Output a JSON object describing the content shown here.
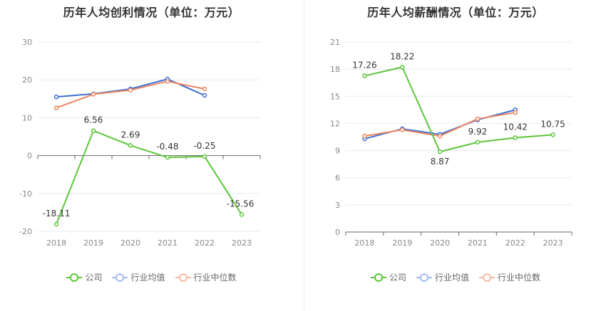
{
  "legend": {
    "company": "公司",
    "industry_avg": "行业均值",
    "industry_median": "行业中位数"
  },
  "colors": {
    "company": "#5cc639",
    "industry_avg": "#3b6fd6",
    "industry_median": "#ef855d"
  },
  "chart_data": [
    {
      "type": "line",
      "title": "历年人均创利情况（单位：万元）",
      "categories": [
        "2018",
        "2019",
        "2020",
        "2021",
        "2022",
        "2023"
      ],
      "yticks": [
        30,
        20,
        10,
        0,
        -10,
        -20
      ],
      "ylim": [
        -20,
        30
      ],
      "series": [
        {
          "name": "公司",
          "key": "company",
          "values": [
            -18.11,
            6.56,
            2.69,
            -0.48,
            -0.25,
            -15.56
          ],
          "labels": [
            "-18.11",
            "6.56",
            "2.69",
            "-0.48",
            "-0.25",
            "-15.56"
          ]
        },
        {
          "name": "行业均值",
          "key": "industry_avg",
          "values": [
            15.5,
            16.3,
            17.6,
            20.2,
            15.9,
            null
          ]
        },
        {
          "name": "行业中位数",
          "key": "industry_median",
          "values": [
            12.6,
            16.2,
            17.3,
            19.6,
            17.6,
            null
          ]
        }
      ]
    },
    {
      "type": "line",
      "title": "历年人均薪酬情况（单位：万元）",
      "categories": [
        "2018",
        "2019",
        "2020",
        "2021",
        "2022",
        "2023"
      ],
      "yticks": [
        21,
        18,
        15,
        12,
        9,
        6,
        3,
        0
      ],
      "ylim": [
        0,
        21
      ],
      "series": [
        {
          "name": "公司",
          "key": "company",
          "values": [
            17.26,
            18.22,
            8.87,
            9.92,
            10.42,
            10.75
          ],
          "labels": [
            "17.26",
            "18.22",
            "8.87",
            "9.92",
            "10.42",
            "10.75"
          ]
        },
        {
          "name": "行业均值",
          "key": "industry_avg",
          "values": [
            10.3,
            11.4,
            10.8,
            12.4,
            13.5,
            null
          ]
        },
        {
          "name": "行业中位数",
          "key": "industry_median",
          "values": [
            10.6,
            11.3,
            10.6,
            12.5,
            13.2,
            null
          ]
        }
      ]
    }
  ]
}
